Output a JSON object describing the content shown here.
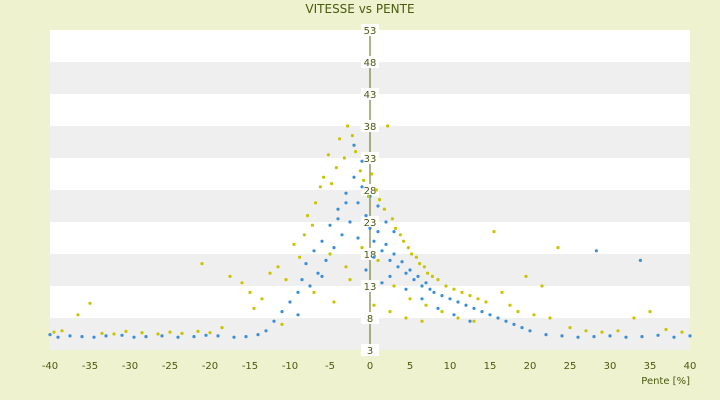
{
  "chart_data": {
    "type": "scatter",
    "title": "VITESSE vs PENTE",
    "xlabel": "Pente [%]",
    "ylabel": "",
    "xlim": [
      -40,
      40
    ],
    "ylim": [
      3,
      53
    ],
    "x_ticks": [
      "-40",
      "-35",
      "-30",
      "-25",
      "-20",
      "-15",
      "-10",
      "-5",
      "0",
      "5",
      "10",
      "15",
      "20",
      "25",
      "30",
      "35",
      "40"
    ],
    "y_ticks": [
      "3",
      "8",
      "13",
      "18",
      "23",
      "28",
      "33",
      "38",
      "43",
      "48",
      "53"
    ],
    "grid": "horizontal bands",
    "legend": "none",
    "colors": {
      "series_a": "#3a8fd6",
      "series_b": "#c9c400",
      "band": "#efefef",
      "plot_bg": "#ffffff",
      "axis": "#5a6a10"
    },
    "series": [
      {
        "points": [
          [
            -40,
            5.4
          ],
          [
            -39,
            5.0
          ],
          [
            -37.5,
            5.2
          ],
          [
            -36,
            5.1
          ],
          [
            -34.5,
            5.0
          ],
          [
            -33,
            5.2
          ],
          [
            -31,
            5.3
          ],
          [
            -29.5,
            5.0
          ],
          [
            -28,
            5.1
          ],
          [
            -26,
            5.2
          ],
          [
            -24,
            5.0
          ],
          [
            -22,
            5.1
          ],
          [
            -20.5,
            5.3
          ],
          [
            -19,
            5.2
          ],
          [
            -17,
            5.0
          ],
          [
            -15.5,
            5.1
          ],
          [
            -14,
            5.4
          ],
          [
            -13,
            6.0
          ],
          [
            -12,
            7.5
          ],
          [
            -11,
            9.0
          ],
          [
            -10,
            10.5
          ],
          [
            -9,
            12.0
          ],
          [
            -8.5,
            14.0
          ],
          [
            -8,
            16.5
          ],
          [
            -7.5,
            13.0
          ],
          [
            -7,
            18.5
          ],
          [
            -6.5,
            15.0
          ],
          [
            -6,
            20.0
          ],
          [
            -5.5,
            17.0
          ],
          [
            -5,
            22.5
          ],
          [
            -4.5,
            19.0
          ],
          [
            -4,
            25.0
          ],
          [
            -3.5,
            21.0
          ],
          [
            -3,
            27.5
          ],
          [
            -2.5,
            23.0
          ],
          [
            -2,
            30.0
          ],
          [
            -1.5,
            26.0
          ],
          [
            -1,
            28.5
          ],
          [
            -0.5,
            24.0
          ],
          [
            0,
            22.0
          ],
          [
            0.5,
            20.0
          ],
          [
            1,
            21.5
          ],
          [
            1.5,
            18.5
          ],
          [
            2,
            19.5
          ],
          [
            2.5,
            17.0
          ],
          [
            3,
            18.0
          ],
          [
            3.5,
            16.0
          ],
          [
            4,
            16.8
          ],
          [
            4.5,
            15.0
          ],
          [
            5,
            15.5
          ],
          [
            5.5,
            14.0
          ],
          [
            6,
            14.5
          ],
          [
            6.5,
            13.0
          ],
          [
            7,
            13.5
          ],
          [
            7.5,
            12.5
          ],
          [
            8,
            12.0
          ],
          [
            9,
            11.5
          ],
          [
            10,
            11.0
          ],
          [
            11,
            10.5
          ],
          [
            12,
            10.0
          ],
          [
            13,
            9.5
          ],
          [
            14,
            9.0
          ],
          [
            15,
            8.5
          ],
          [
            16,
            8.0
          ],
          [
            17,
            7.5
          ],
          [
            18,
            7.0
          ],
          [
            19,
            6.5
          ],
          [
            20,
            6.0
          ],
          [
            22,
            5.4
          ],
          [
            24,
            5.2
          ],
          [
            26,
            5.0
          ],
          [
            28,
            5.1
          ],
          [
            28.3,
            18.5
          ],
          [
            30,
            5.2
          ],
          [
            32,
            5.0
          ],
          [
            33.8,
            17.0
          ],
          [
            34,
            5.1
          ],
          [
            36,
            5.3
          ],
          [
            38,
            5.0
          ],
          [
            40,
            5.2
          ],
          [
            -2,
            35.0
          ],
          [
            -1,
            32.5
          ],
          [
            0,
            27.0
          ],
          [
            1,
            25.5
          ],
          [
            2,
            23.0
          ],
          [
            3,
            21.5
          ],
          [
            -3,
            26.0
          ],
          [
            -4,
            23.5
          ],
          [
            -6,
            14.5
          ],
          [
            -9,
            8.5
          ],
          [
            -1.5,
            20.5
          ],
          [
            0.5,
            17.5
          ],
          [
            2.5,
            14.5
          ],
          [
            4.5,
            12.5
          ],
          [
            6.5,
            11.0
          ],
          [
            8.5,
            9.5
          ],
          [
            10.5,
            8.5
          ],
          [
            12.5,
            7.5
          ],
          [
            -0.5,
            15.5
          ],
          [
            1.5,
            13.5
          ]
        ]
      },
      {
        "points": [
          [
            -39.5,
            5.8
          ],
          [
            -38.5,
            6.0
          ],
          [
            -36.5,
            8.5
          ],
          [
            -35,
            10.3
          ],
          [
            -33.5,
            5.6
          ],
          [
            -32,
            5.5
          ],
          [
            -30.5,
            5.9
          ],
          [
            -28.5,
            5.7
          ],
          [
            -26.5,
            5.5
          ],
          [
            -25,
            5.8
          ],
          [
            -23.5,
            5.6
          ],
          [
            -21.5,
            5.9
          ],
          [
            -21,
            16.5
          ],
          [
            -20,
            5.7
          ],
          [
            -18.5,
            6.5
          ],
          [
            -17.5,
            14.5
          ],
          [
            -16,
            13.5
          ],
          [
            -15,
            12.0
          ],
          [
            -14.5,
            9.5
          ],
          [
            -13.5,
            11.0
          ],
          [
            -12.5,
            15.0
          ],
          [
            -11.5,
            16.0
          ],
          [
            -10.5,
            14.0
          ],
          [
            -9.5,
            19.5
          ],
          [
            -8.8,
            17.5
          ],
          [
            -8.2,
            21.0
          ],
          [
            -7.8,
            24.0
          ],
          [
            -7.2,
            22.5
          ],
          [
            -6.8,
            26.0
          ],
          [
            -6.2,
            28.5
          ],
          [
            -5.8,
            30.0
          ],
          [
            -5.2,
            33.5
          ],
          [
            -4.8,
            29.0
          ],
          [
            -4.2,
            31.5
          ],
          [
            -3.8,
            36.0
          ],
          [
            -3.2,
            33.0
          ],
          [
            -2.8,
            38.0
          ],
          [
            -2.2,
            36.5
          ],
          [
            -1.8,
            34.0
          ],
          [
            -1.2,
            31.0
          ],
          [
            -0.8,
            29.5
          ],
          [
            -0.2,
            27.0
          ],
          [
            0.2,
            30.5
          ],
          [
            0.8,
            28.0
          ],
          [
            1.2,
            26.5
          ],
          [
            1.8,
            25.0
          ],
          [
            2.2,
            38.0
          ],
          [
            2.8,
            23.5
          ],
          [
            3.2,
            22.0
          ],
          [
            3.8,
            21.0
          ],
          [
            4.2,
            20.0
          ],
          [
            4.8,
            19.0
          ],
          [
            5.2,
            18.0
          ],
          [
            5.8,
            17.5
          ],
          [
            6.2,
            16.5
          ],
          [
            6.8,
            16.0
          ],
          [
            7.2,
            15.0
          ],
          [
            7.8,
            14.5
          ],
          [
            8.5,
            14.0
          ],
          [
            9.5,
            13.0
          ],
          [
            10.5,
            12.5
          ],
          [
            11.5,
            12.0
          ],
          [
            12.5,
            11.5
          ],
          [
            13.5,
            11.0
          ],
          [
            14.5,
            10.5
          ],
          [
            15.5,
            21.5
          ],
          [
            16.5,
            12.0
          ],
          [
            17.5,
            10.0
          ],
          [
            18.5,
            9.0
          ],
          [
            19.5,
            14.5
          ],
          [
            20.5,
            8.5
          ],
          [
            21.5,
            13.0
          ],
          [
            22.5,
            8.0
          ],
          [
            23.5,
            19.0
          ],
          [
            25,
            6.5
          ],
          [
            27,
            6.0
          ],
          [
            29,
            5.8
          ],
          [
            31,
            6.0
          ],
          [
            33,
            8.0
          ],
          [
            35,
            9.0
          ],
          [
            37,
            6.2
          ],
          [
            39,
            5.8
          ],
          [
            -11,
            7.0
          ],
          [
            -7,
            12.0
          ],
          [
            -5,
            18.0
          ],
          [
            -3,
            16.0
          ],
          [
            -1,
            19.0
          ],
          [
            1,
            17.0
          ],
          [
            3,
            13.0
          ],
          [
            5,
            11.0
          ],
          [
            7,
            10.0
          ],
          [
            9,
            9.0
          ],
          [
            11,
            8.0
          ],
          [
            13,
            7.5
          ],
          [
            -2.5,
            14.0
          ],
          [
            -4.5,
            10.5
          ],
          [
            0.5,
            10.0
          ],
          [
            2.5,
            9.0
          ],
          [
            4.5,
            8.0
          ],
          [
            6.5,
            7.5
          ]
        ]
      }
    ]
  }
}
